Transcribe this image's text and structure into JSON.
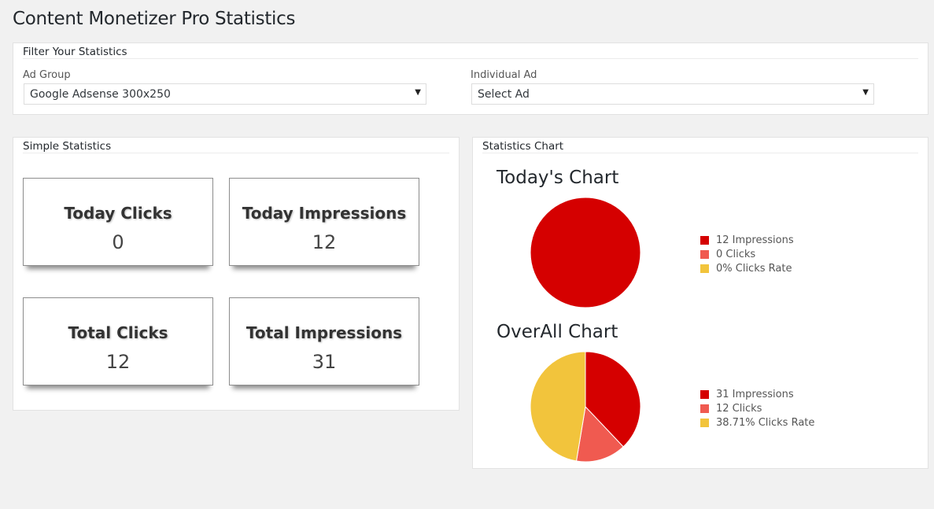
{
  "page_title": "Content Monetizer Pro Statistics",
  "filter": {
    "title": "Filter Your Statistics",
    "ad_group": {
      "label": "Ad Group",
      "value": "Google Adsense 300x250"
    },
    "individual_ad": {
      "label": "Individual Ad",
      "value": "Select Ad"
    }
  },
  "simple_statistics": {
    "title": "Simple Statistics",
    "today_clicks": {
      "label": "Today Clicks",
      "value": "0"
    },
    "today_impressions": {
      "label": "Today Impressions",
      "value": "12"
    },
    "total_clicks": {
      "label": "Total Clicks",
      "value": "12"
    },
    "total_impressions": {
      "label": "Total Impressions",
      "value": "31"
    }
  },
  "statistics_chart": {
    "title": "Statistics Chart"
  },
  "colors": {
    "impressions": "#d50000",
    "clicks": "#f05a50",
    "clicks_rate": "#f2c43c"
  },
  "chart_data": [
    {
      "type": "pie",
      "title": "Today's Chart",
      "labels": [
        "Impressions",
        "Clicks",
        "Clicks Rate"
      ],
      "values": [
        12,
        0,
        0
      ],
      "legend": [
        "12 Impressions",
        "0 Clicks",
        "0% Clicks Rate"
      ],
      "legend_position": "right"
    },
    {
      "type": "pie",
      "title": "OverAll Chart",
      "labels": [
        "Impressions",
        "Clicks",
        "Clicks Rate"
      ],
      "values": [
        31,
        12,
        38.71
      ],
      "legend": [
        "31 Impressions",
        "12 Clicks",
        "38.71% Clicks Rate"
      ],
      "legend_position": "right"
    }
  ]
}
